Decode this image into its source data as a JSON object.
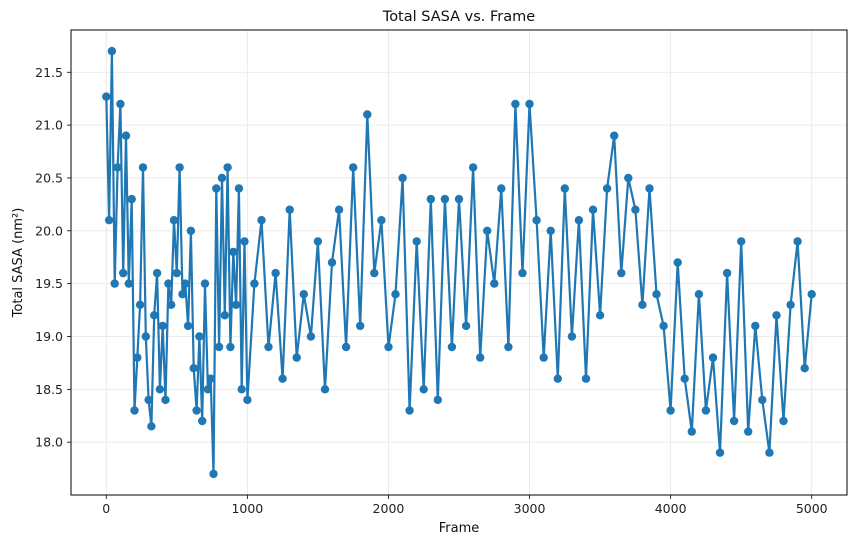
{
  "chart_data": {
    "type": "line",
    "title": "Total SASA vs. Frame",
    "xlabel": "Frame",
    "ylabel": "Total SASA (nm²)",
    "xlim": [
      -250,
      5250
    ],
    "ylim": [
      17.5,
      21.9
    ],
    "xticks": [
      0,
      1000,
      2000,
      3000,
      4000,
      5000
    ],
    "xtick_labels": [
      "0",
      "1000",
      "2000",
      "3000",
      "4000",
      "5000"
    ],
    "yticks": [
      18.0,
      18.5,
      19.0,
      19.5,
      20.0,
      20.5,
      21.0,
      21.5
    ],
    "ytick_labels": [
      "18.0",
      "18.5",
      "19.0",
      "19.5",
      "20.0",
      "20.5",
      "21.0",
      "21.5"
    ],
    "grid": true,
    "marker": "circle",
    "colors": {
      "series": "#1f77b4",
      "grid": "#e6e6e6",
      "axis": "#000000"
    },
    "series": [
      {
        "x": [
          0,
          20,
          40,
          60,
          80,
          100,
          120,
          140,
          160,
          180,
          200,
          220,
          240,
          260,
          280,
          300,
          320,
          340,
          360,
          380,
          400,
          420,
          440,
          460,
          480,
          500,
          520,
          540,
          560,
          580,
          600,
          620,
          640,
          660,
          680,
          700,
          720,
          740,
          760,
          780,
          800,
          820,
          840,
          860,
          880,
          900,
          920,
          940,
          960,
          980,
          1000,
          1050,
          1100,
          1150,
          1200,
          1250,
          1300,
          1350,
          1400,
          1450,
          1500,
          1550,
          1600,
          1650,
          1700,
          1750,
          1800,
          1850,
          1900,
          1950,
          2000,
          2050,
          2100,
          2150,
          2200,
          2250,
          2300,
          2350,
          2400,
          2450,
          2500,
          2550,
          2600,
          2650,
          2700,
          2750,
          2800,
          2850,
          2900,
          2950,
          3000,
          3050,
          3100,
          3150,
          3200,
          3250,
          3300,
          3350,
          3400,
          3450,
          3500,
          3550,
          3600,
          3650,
          3700,
          3750,
          3800,
          3850,
          3900,
          3950,
          4000,
          4050,
          4100,
          4150,
          4200,
          4250,
          4300,
          4350,
          4400,
          4450,
          4500,
          4550,
          4600,
          4650,
          4700,
          4750,
          4800,
          4850,
          4900,
          4950,
          5000
        ],
        "y": [
          21.27,
          20.1,
          21.7,
          19.5,
          20.6,
          21.2,
          19.6,
          20.9,
          19.5,
          20.3,
          18.3,
          18.8,
          19.3,
          20.6,
          19.0,
          18.4,
          18.15,
          19.2,
          19.6,
          18.5,
          19.1,
          18.4,
          19.5,
          19.3,
          20.1,
          19.6,
          20.6,
          19.4,
          19.5,
          19.1,
          20.0,
          18.7,
          18.3,
          19.0,
          18.2,
          19.5,
          18.5,
          18.6,
          17.7,
          20.4,
          18.9,
          20.5,
          19.2,
          20.6,
          18.9,
          19.8,
          19.3,
          20.4,
          18.5,
          19.9,
          18.4,
          19.5,
          20.1,
          18.9,
          19.6,
          18.6,
          20.2,
          18.8,
          19.4,
          19.0,
          19.9,
          18.5,
          19.7,
          20.2,
          18.9,
          20.6,
          19.1,
          21.1,
          19.6,
          20.1,
          18.9,
          19.4,
          20.5,
          18.3,
          19.9,
          18.5,
          20.3,
          18.4,
          20.3,
          18.9,
          20.3,
          19.1,
          20.6,
          18.8,
          20.0,
          19.5,
          20.4,
          18.9,
          21.2,
          19.6,
          21.2,
          20.1,
          18.8,
          20.0,
          18.6,
          20.4,
          19.0,
          20.1,
          18.6,
          20.2,
          19.2,
          20.4,
          20.9,
          19.6,
          20.5,
          20.2,
          19.3,
          20.4,
          19.4,
          19.1,
          18.3,
          19.7,
          18.6,
          18.1,
          19.4,
          18.3,
          18.8,
          17.9,
          19.6,
          18.2,
          19.9,
          18.1,
          19.1,
          18.4,
          17.9,
          19.2,
          18.2,
          19.3,
          19.9,
          18.7,
          19.4
        ]
      }
    ]
  }
}
